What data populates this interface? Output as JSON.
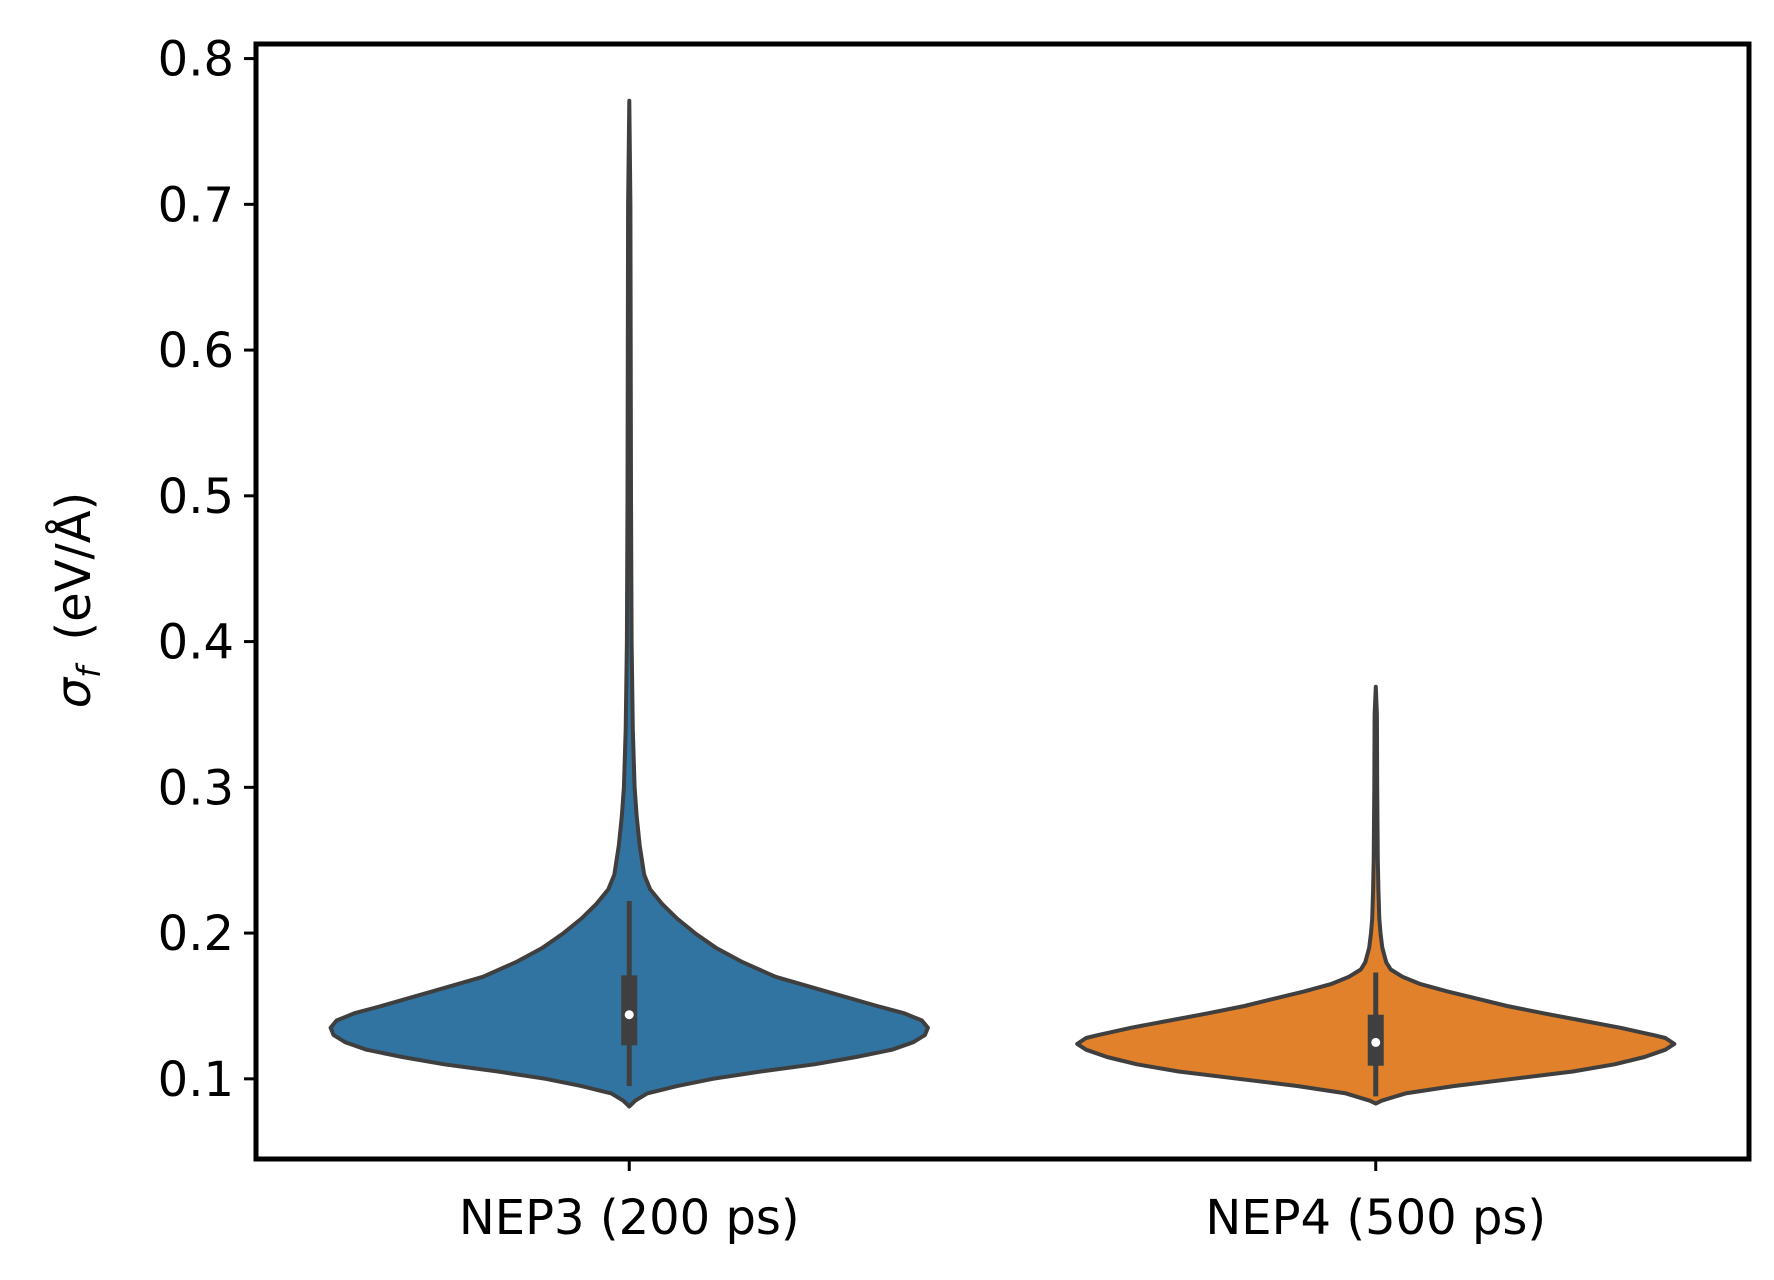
{
  "chart_data": {
    "type": "violin",
    "xlabel": "",
    "ylabel": "σ_f  (eV/Å)",
    "ylabel_parts": {
      "symbol": "σ",
      "subscript": "f",
      "unit": "(eV/Å)"
    },
    "ylim": [
      0.045,
      0.81
    ],
    "yticks": [
      0.1,
      0.2,
      0.3,
      0.4,
      0.5,
      0.6,
      0.7,
      0.8
    ],
    "ytick_labels": [
      "0.1",
      "0.2",
      "0.3",
      "0.4",
      "0.5",
      "0.6",
      "0.7",
      "0.8"
    ],
    "grid": false,
    "categories": [
      "NEP3 (200 ps)",
      "NEP4 (500 ps)"
    ],
    "series": [
      {
        "category": "NEP3 (200 ps)",
        "color": "#3274a1",
        "min": 0.081,
        "max": 0.771,
        "q1": 0.123,
        "median": 0.144,
        "q3": 0.171,
        "whisker_low": 0.095,
        "whisker_high": 0.222,
        "density_profile": [
          [
            0.081,
            0.0
          ],
          [
            0.085,
            0.02
          ],
          [
            0.09,
            0.06
          ],
          [
            0.095,
            0.16
          ],
          [
            0.1,
            0.28
          ],
          [
            0.105,
            0.44
          ],
          [
            0.11,
            0.62
          ],
          [
            0.115,
            0.76
          ],
          [
            0.12,
            0.88
          ],
          [
            0.125,
            0.95
          ],
          [
            0.13,
            0.99
          ],
          [
            0.135,
            1.0
          ],
          [
            0.14,
            0.98
          ],
          [
            0.145,
            0.92
          ],
          [
            0.15,
            0.83
          ],
          [
            0.16,
            0.66
          ],
          [
            0.17,
            0.49
          ],
          [
            0.18,
            0.38
          ],
          [
            0.19,
            0.29
          ],
          [
            0.2,
            0.22
          ],
          [
            0.21,
            0.16
          ],
          [
            0.22,
            0.11
          ],
          [
            0.23,
            0.07
          ],
          [
            0.24,
            0.05
          ],
          [
            0.26,
            0.035
          ],
          [
            0.28,
            0.025
          ],
          [
            0.3,
            0.018
          ],
          [
            0.34,
            0.012
          ],
          [
            0.4,
            0.008
          ],
          [
            0.5,
            0.006
          ],
          [
            0.6,
            0.005
          ],
          [
            0.7,
            0.004
          ],
          [
            0.771,
            0.0
          ]
        ]
      },
      {
        "category": "NEP4 (500 ps)",
        "color": "#e1812c",
        "min": 0.083,
        "max": 0.369,
        "q1": 0.109,
        "median": 0.125,
        "q3": 0.144,
        "whisker_low": 0.088,
        "whisker_high": 0.173,
        "density_profile": [
          [
            0.083,
            0.0
          ],
          [
            0.085,
            0.02
          ],
          [
            0.09,
            0.1
          ],
          [
            0.095,
            0.26
          ],
          [
            0.1,
            0.46
          ],
          [
            0.105,
            0.66
          ],
          [
            0.11,
            0.8
          ],
          [
            0.115,
            0.9
          ],
          [
            0.12,
            0.97
          ],
          [
            0.124,
            1.0
          ],
          [
            0.128,
            0.97
          ],
          [
            0.13,
            0.93
          ],
          [
            0.135,
            0.82
          ],
          [
            0.14,
            0.69
          ],
          [
            0.145,
            0.56
          ],
          [
            0.15,
            0.44
          ],
          [
            0.155,
            0.34
          ],
          [
            0.16,
            0.24
          ],
          [
            0.165,
            0.15
          ],
          [
            0.17,
            0.09
          ],
          [
            0.175,
            0.05
          ],
          [
            0.18,
            0.035
          ],
          [
            0.19,
            0.022
          ],
          [
            0.2,
            0.016
          ],
          [
            0.21,
            0.012
          ],
          [
            0.23,
            0.009
          ],
          [
            0.25,
            0.007
          ],
          [
            0.3,
            0.005
          ],
          [
            0.35,
            0.004
          ],
          [
            0.369,
            0.0
          ]
        ]
      }
    ]
  }
}
